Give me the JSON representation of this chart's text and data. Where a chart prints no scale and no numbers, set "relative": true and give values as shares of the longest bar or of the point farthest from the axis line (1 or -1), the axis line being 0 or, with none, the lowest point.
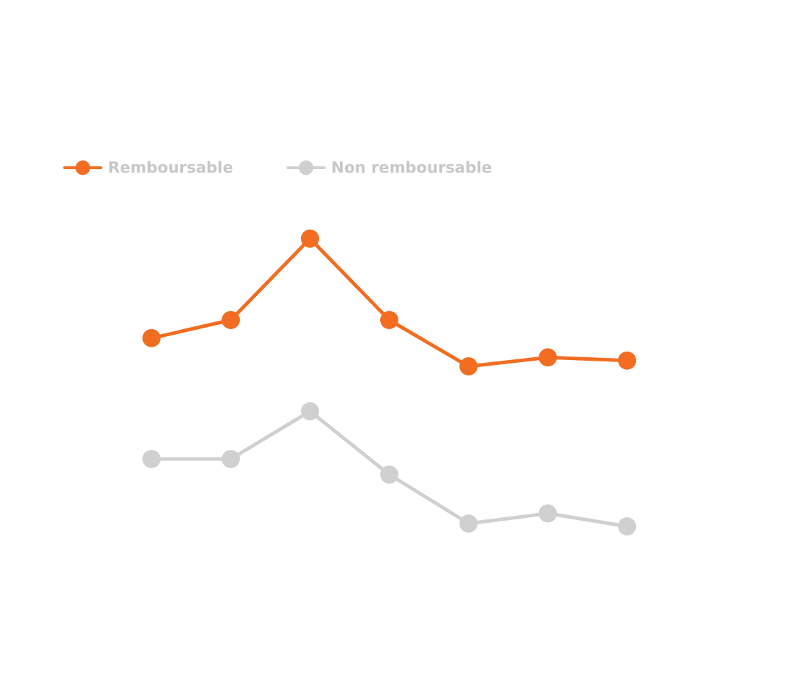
{
  "chart_data": {
    "type": "line",
    "relative": true,
    "legend": "top left",
    "marker": "circle",
    "categories": [
      null,
      null,
      null,
      null,
      null,
      null,
      null
    ],
    "series": [
      {
        "name": "Remboursable",
        "color": "#f26d21",
        "values": [
          0.654,
          0.717,
          1,
          0.717,
          0.556,
          0.587,
          0.576
        ]
      },
      {
        "name": "Non remboursable",
        "color": "#d0d0d0",
        "values": [
          0.234,
          0.234,
          0.4,
          0.18,
          0.01,
          0.045,
          0
        ]
      }
    ]
  }
}
